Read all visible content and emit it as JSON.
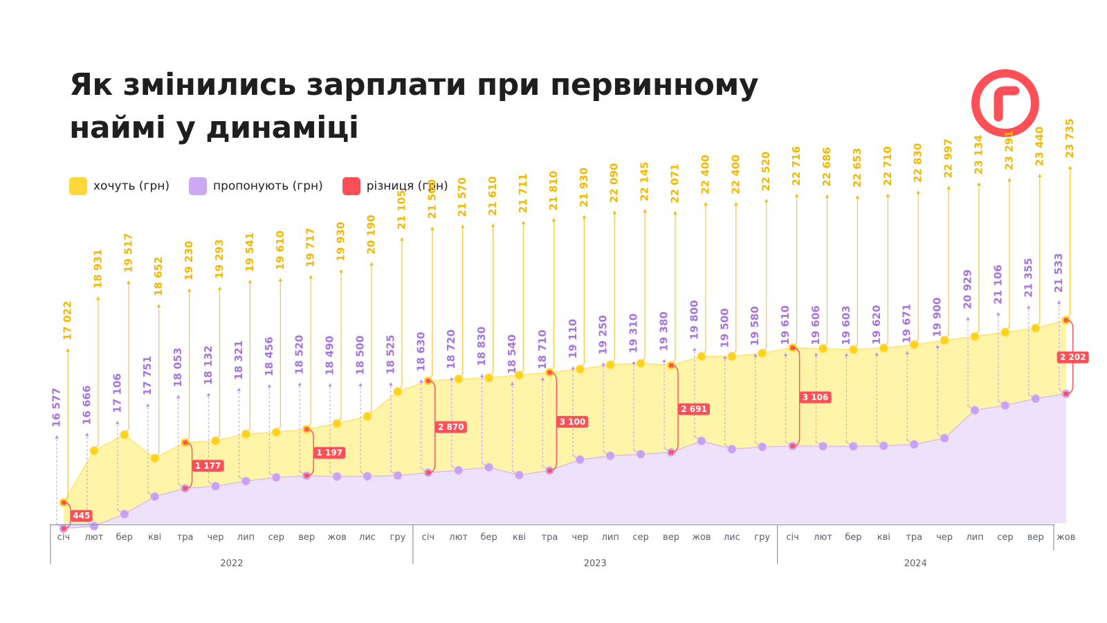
{
  "title": "Як змінились зарплати при первинному наймі у динаміці",
  "legend": [
    {
      "label": "хочуть (грн)",
      "color": "#FFD93B"
    },
    {
      "label": "пропонують (грн)",
      "color": "#CDA8F5"
    },
    {
      "label": "різниця (грн)",
      "color": "#FF4F57"
    }
  ],
  "colors": {
    "wanted": "#F5B800",
    "wanted_fill": "#FFF4A8",
    "offered": "#A574E0",
    "offered_fill": "#EEE2FB",
    "diff": "#FF4F57",
    "axis": "#8A95A5"
  },
  "logo_icon": "rabota-r-logo-icon",
  "chart_data": {
    "type": "area",
    "title": "Як змінились зарплати при первинному наймі у динаміці",
    "months": [
      "січ",
      "лют",
      "бер",
      "кві",
      "тра",
      "чер",
      "лип",
      "сер",
      "вер",
      "жов",
      "лис",
      "гру",
      "січ",
      "лют",
      "бер",
      "кві",
      "тра",
      "чер",
      "лип",
      "сер",
      "вер",
      "жов",
      "лис",
      "гру",
      "січ",
      "лют",
      "бер",
      "кві",
      "тра",
      "чер",
      "лип",
      "сер",
      "вер",
      "жов"
    ],
    "years": [
      {
        "label": "2022",
        "count": 12
      },
      {
        "label": "2023",
        "count": 12
      },
      {
        "label": "2024",
        "count": 10
      }
    ],
    "series": [
      {
        "name": "хочуть (грн)",
        "values": [
          17022,
          18931,
          19517,
          18652,
          19230,
          19293,
          19541,
          19610,
          19717,
          19930,
          20190,
          21105,
          21500,
          21570,
          21610,
          21711,
          21810,
          21930,
          22090,
          22145,
          22071,
          22400,
          22400,
          22520,
          22716,
          22686,
          22653,
          22710,
          22830,
          22997,
          23134,
          23291,
          23440,
          23735
        ]
      },
      {
        "name": "пропонують (грн)",
        "values": [
          16577,
          16666,
          17106,
          17751,
          18053,
          18132,
          18321,
          18456,
          18520,
          18490,
          18500,
          18525,
          18630,
          18720,
          18830,
          18540,
          18710,
          19110,
          19250,
          19310,
          19380,
          19800,
          19500,
          19580,
          19610,
          19606,
          19603,
          19620,
          19671,
          19900,
          20929,
          21106,
          21355,
          21533
        ]
      }
    ],
    "wanted_labels": [
      "17 022",
      "18 931",
      "19 517",
      "18 652",
      "19 230",
      "19 293",
      "19 541",
      "19 610",
      "19 717",
      "19 930",
      "20 190",
      "21 105",
      "21 500",
      "21 570",
      "21 610",
      "21 711",
      "21 810",
      "21 930",
      "22 090",
      "22 145",
      "22 071",
      "22 400",
      "22 400",
      "22 520",
      "22 716",
      "22 686",
      "22 653",
      "22 710",
      "22 830",
      "22 997",
      "23 134",
      "23 291",
      "23 440",
      "23 735"
    ],
    "offered_labels": [
      "16 577",
      "16 666",
      "17 106",
      "17 751",
      "18 053",
      "18 132",
      "18 321",
      "18 456",
      "18 520",
      "18 490",
      "18 500",
      "18 525",
      "18 630",
      "18 720",
      "18 830",
      "18 540",
      "18 710",
      "19 110",
      "19 250",
      "19 310",
      "19 380",
      "19 800",
      "19 500",
      "19 580",
      "19 610",
      "19 606",
      "19 603",
      "19 620",
      "19 671",
      "19 900",
      "20 929",
      "21 106",
      "21 355",
      "21 533"
    ],
    "differences": [
      {
        "index": 0,
        "label": "445"
      },
      {
        "index": 4,
        "label": "1 177"
      },
      {
        "index": 8,
        "label": "1 197"
      },
      {
        "index": 12,
        "label": "2 870"
      },
      {
        "index": 16,
        "label": "3 100"
      },
      {
        "index": 20,
        "label": "2 691"
      },
      {
        "index": 24,
        "label": "3 106"
      },
      {
        "index": 33,
        "label": "2 202"
      }
    ]
  }
}
